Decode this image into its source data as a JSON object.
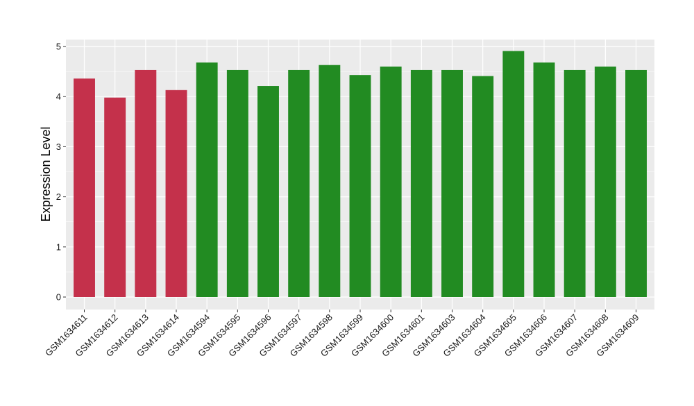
{
  "chart_data": {
    "type": "bar",
    "title": "",
    "xlabel": "",
    "ylabel": "Expression Level",
    "ylim": [
      0,
      5.05
    ],
    "yticks": [
      0,
      1,
      2,
      3,
      4,
      5
    ],
    "grid": true,
    "categories": [
      "GSM1634611",
      "GSM1634612",
      "GSM1634613",
      "GSM1634614",
      "GSM1634594",
      "GSM1634595",
      "GSM1634596",
      "GSM1634597",
      "GSM1634598",
      "GSM1634599",
      "GSM1634600",
      "GSM1634601",
      "GSM1634603",
      "GSM1634604",
      "GSM1634605",
      "GSM1634606",
      "GSM1634607",
      "GSM1634608",
      "GSM1634609"
    ],
    "values": [
      4.36,
      3.98,
      4.53,
      4.13,
      4.68,
      4.53,
      4.21,
      4.53,
      4.63,
      4.43,
      4.6,
      4.53,
      4.53,
      4.41,
      4.91,
      4.68,
      4.53,
      4.6,
      4.53
    ],
    "group_colors": {
      "red": "#C4314B",
      "green": "#228B22"
    },
    "bar_colors": [
      "#C4314B",
      "#C4314B",
      "#C4314B",
      "#C4314B",
      "#228B22",
      "#228B22",
      "#228B22",
      "#228B22",
      "#228B22",
      "#228B22",
      "#228B22",
      "#228B22",
      "#228B22",
      "#228B22",
      "#228B22",
      "#228B22",
      "#228B22",
      "#228B22",
      "#228B22"
    ],
    "panel_background": "#EBEBEB",
    "grid_color": "#FFFFFF"
  }
}
